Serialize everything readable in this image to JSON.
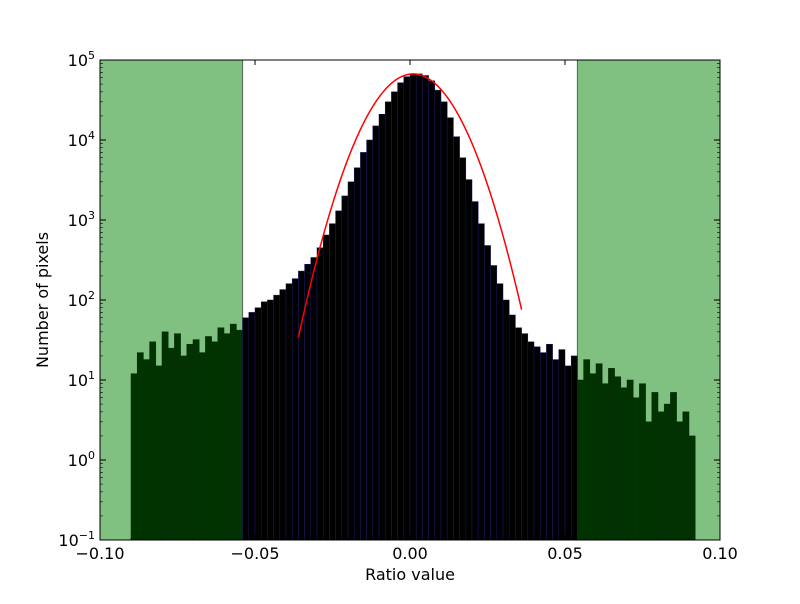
{
  "chart_data": {
    "type": "bar",
    "title": "",
    "xlabel": "Ratio value",
    "ylabel": "Number of pixels",
    "xlim": [
      -0.1,
      0.1
    ],
    "ylim": [
      0.1,
      100000
    ],
    "yscale": "log",
    "grid": false,
    "x_ticks": [
      {
        "value": -0.1,
        "label": "−0.10"
      },
      {
        "value": -0.05,
        "label": "−0.05"
      },
      {
        "value": 0.0,
        "label": "0.00"
      },
      {
        "value": 0.05,
        "label": "0.05"
      },
      {
        "value": 0.1,
        "label": "0.10"
      }
    ],
    "y_ticks": [
      {
        "value": 0.1,
        "base": "10",
        "exp": "−1"
      },
      {
        "value": 1,
        "base": "10",
        "exp": "0"
      },
      {
        "value": 10,
        "base": "10",
        "exp": "1"
      },
      {
        "value": 100,
        "base": "10",
        "exp": "2"
      },
      {
        "value": 1000,
        "base": "10",
        "exp": "3"
      },
      {
        "value": 10000,
        "base": "10",
        "exp": "4"
      },
      {
        "value": 100000,
        "base": "10",
        "exp": "5"
      }
    ],
    "shaded_regions": [
      {
        "x0": -0.1,
        "x1": -0.054,
        "color": "#80c080"
      },
      {
        "x0": 0.054,
        "x1": 0.1,
        "color": "#80c080"
      }
    ],
    "histogram": {
      "color": "#000000",
      "edge_color": "#1a1a6a",
      "highlight_color": "#003300",
      "bins": [
        {
          "x": -0.09,
          "y": 12
        },
        {
          "x": -0.088,
          "y": 22
        },
        {
          "x": -0.086,
          "y": 18
        },
        {
          "x": -0.084,
          "y": 30
        },
        {
          "x": -0.082,
          "y": 15
        },
        {
          "x": -0.08,
          "y": 40
        },
        {
          "x": -0.078,
          "y": 25
        },
        {
          "x": -0.076,
          "y": 38
        },
        {
          "x": -0.074,
          "y": 20
        },
        {
          "x": -0.072,
          "y": 28
        },
        {
          "x": -0.07,
          "y": 32
        },
        {
          "x": -0.068,
          "y": 22
        },
        {
          "x": -0.066,
          "y": 35
        },
        {
          "x": -0.064,
          "y": 30
        },
        {
          "x": -0.062,
          "y": 45
        },
        {
          "x": -0.06,
          "y": 38
        },
        {
          "x": -0.058,
          "y": 50
        },
        {
          "x": -0.056,
          "y": 42
        },
        {
          "x": -0.054,
          "y": 60
        },
        {
          "x": -0.052,
          "y": 70
        },
        {
          "x": -0.05,
          "y": 80
        },
        {
          "x": -0.048,
          "y": 95
        },
        {
          "x": -0.046,
          "y": 100
        },
        {
          "x": -0.044,
          "y": 115
        },
        {
          "x": -0.042,
          "y": 135
        },
        {
          "x": -0.04,
          "y": 160
        },
        {
          "x": -0.038,
          "y": 185
        },
        {
          "x": -0.036,
          "y": 230
        },
        {
          "x": -0.034,
          "y": 280
        },
        {
          "x": -0.032,
          "y": 340
        },
        {
          "x": -0.03,
          "y": 450
        },
        {
          "x": -0.028,
          "y": 650
        },
        {
          "x": -0.026,
          "y": 900
        },
        {
          "x": -0.024,
          "y": 1300
        },
        {
          "x": -0.022,
          "y": 2000
        },
        {
          "x": -0.02,
          "y": 3000
        },
        {
          "x": -0.018,
          "y": 4500
        },
        {
          "x": -0.016,
          "y": 7000
        },
        {
          "x": -0.014,
          "y": 10000
        },
        {
          "x": -0.012,
          "y": 15000
        },
        {
          "x": -0.01,
          "y": 21000
        },
        {
          "x": -0.008,
          "y": 30000
        },
        {
          "x": -0.006,
          "y": 40000
        },
        {
          "x": -0.004,
          "y": 52000
        },
        {
          "x": -0.002,
          "y": 62000
        },
        {
          "x": 0.0,
          "y": 66000
        },
        {
          "x": 0.002,
          "y": 67000
        },
        {
          "x": 0.004,
          "y": 64000
        },
        {
          "x": 0.006,
          "y": 55000
        },
        {
          "x": 0.008,
          "y": 42000
        },
        {
          "x": 0.01,
          "y": 30000
        },
        {
          "x": 0.012,
          "y": 19000
        },
        {
          "x": 0.014,
          "y": 11000
        },
        {
          "x": 0.016,
          "y": 6000
        },
        {
          "x": 0.018,
          "y": 3200
        },
        {
          "x": 0.02,
          "y": 1700
        },
        {
          "x": 0.022,
          "y": 900
        },
        {
          "x": 0.024,
          "y": 480
        },
        {
          "x": 0.026,
          "y": 270
        },
        {
          "x": 0.028,
          "y": 160
        },
        {
          "x": 0.03,
          "y": 100
        },
        {
          "x": 0.032,
          "y": 65
        },
        {
          "x": 0.034,
          "y": 45
        },
        {
          "x": 0.036,
          "y": 38
        },
        {
          "x": 0.038,
          "y": 30
        },
        {
          "x": 0.04,
          "y": 26
        },
        {
          "x": 0.042,
          "y": 22
        },
        {
          "x": 0.044,
          "y": 28
        },
        {
          "x": 0.046,
          "y": 18
        },
        {
          "x": 0.048,
          "y": 24
        },
        {
          "x": 0.05,
          "y": 15
        },
        {
          "x": 0.052,
          "y": 20
        },
        {
          "x": 0.054,
          "y": 10
        },
        {
          "x": 0.056,
          "y": 18
        },
        {
          "x": 0.058,
          "y": 12
        },
        {
          "x": 0.06,
          "y": 16
        },
        {
          "x": 0.062,
          "y": 9
        },
        {
          "x": 0.064,
          "y": 14
        },
        {
          "x": 0.066,
          "y": 11
        },
        {
          "x": 0.068,
          "y": 8
        },
        {
          "x": 0.07,
          "y": 10
        },
        {
          "x": 0.072,
          "y": 6
        },
        {
          "x": 0.074,
          "y": 9
        },
        {
          "x": 0.076,
          "y": 3
        },
        {
          "x": 0.078,
          "y": 7
        },
        {
          "x": 0.08,
          "y": 4
        },
        {
          "x": 0.082,
          "y": 5
        },
        {
          "x": 0.084,
          "y": 7
        },
        {
          "x": 0.086,
          "y": 3
        },
        {
          "x": 0.088,
          "y": 4
        },
        {
          "x": 0.09,
          "y": 2
        }
      ]
    },
    "fit_curve": {
      "color": "#ff0000",
      "type": "gaussian",
      "amplitude": 67000,
      "center": 0.001,
      "sigma": 0.0095,
      "x_range": [
        -0.036,
        0.036
      ]
    }
  }
}
